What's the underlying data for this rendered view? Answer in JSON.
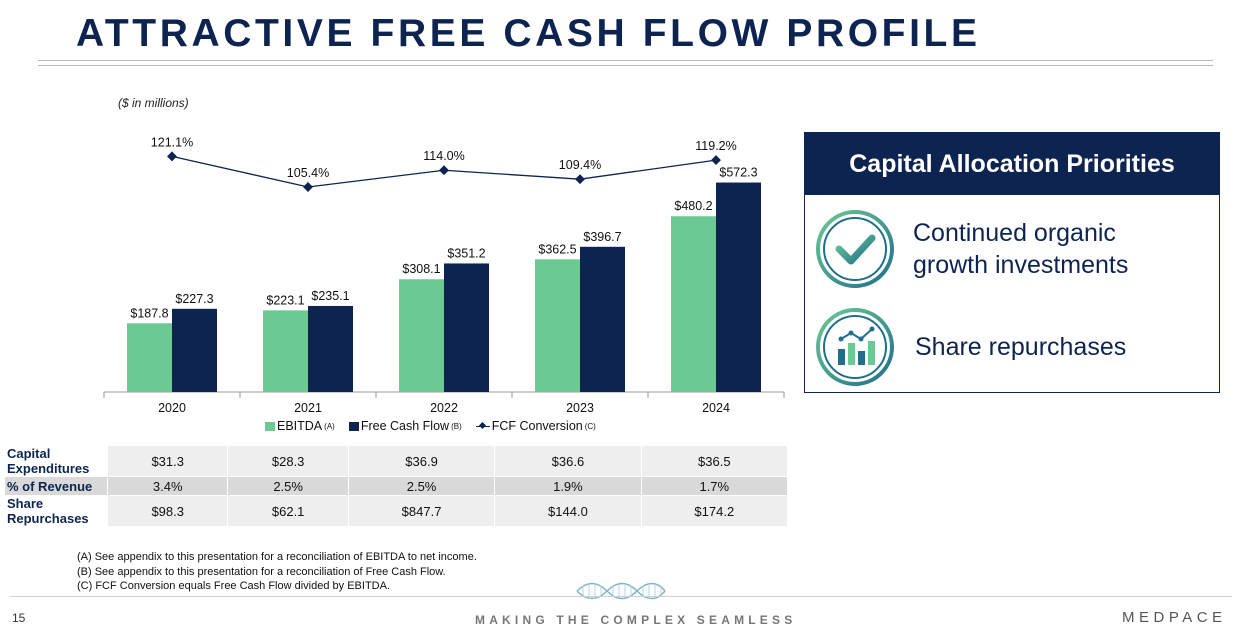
{
  "title": "ATTRACTIVE FREE CASH FLOW PROFILE",
  "units": "($ in millions)",
  "colors": {
    "ebitda": "#6dc993",
    "fcf": "#0d2450",
    "accent": "#0d2450"
  },
  "chart_data": {
    "type": "bar",
    "categories": [
      "2020",
      "2021",
      "2022",
      "2023",
      "2024"
    ],
    "series": [
      {
        "name": "EBITDA",
        "values": [
          187.8,
          223.1,
          308.1,
          362.5,
          480.2
        ],
        "labels": [
          "$187.8",
          "$223.1",
          "$308.1",
          "$362.5",
          "$480.2"
        ]
      },
      {
        "name": "Free Cash Flow",
        "values": [
          227.3,
          235.1,
          351.2,
          396.7,
          572.3
        ],
        "labels": [
          "$227.3",
          "$235.1",
          "$351.2",
          "$396.7",
          "$572.3"
        ]
      }
    ],
    "line_series": {
      "name": "FCF Conversion",
      "values": [
        121.1,
        105.4,
        114.0,
        109.4,
        119.2
      ],
      "labels": [
        "121.1%",
        "105.4%",
        "114.0%",
        "109.4%",
        "119.2%"
      ]
    },
    "legend": [
      {
        "label": "EBITDA",
        "sup": "(A)"
      },
      {
        "label": "Free Cash Flow",
        "sup": "(B)"
      },
      {
        "label": "FCF Conversion",
        "sup": "(C)"
      }
    ],
    "ylim": [
      0,
      600
    ],
    "grid": false,
    "legend_position": "bottom"
  },
  "table": {
    "rows": [
      {
        "label": "Capital Expenditures",
        "values": [
          "$31.3",
          "$28.3",
          "$36.9",
          "$36.6",
          "$36.5"
        ]
      },
      {
        "label": "% of Revenue",
        "values": [
          "3.4%",
          "2.5%",
          "2.5%",
          "1.9%",
          "1.7%"
        ]
      },
      {
        "label": "Share Repurchases",
        "values": [
          "$98.3",
          "$62.1",
          "$847.7",
          "$144.0",
          "$174.2"
        ]
      }
    ]
  },
  "footnotes": [
    "(A) See appendix to this presentation for a reconciliation of EBITDA to net income.",
    "(B) See appendix to this presentation for a reconciliation of Free Cash Flow.",
    "(C) FCF Conversion equals Free Cash Flow divided by EBITDA."
  ],
  "capital_allocation": {
    "header": "Capital Allocation Priorities",
    "items": [
      {
        "text_line1": "Continued organic",
        "text_line2": "growth investments",
        "icon": "checkmark-icon"
      },
      {
        "text_line1": "Share repurchases",
        "icon": "bar-chart-icon"
      }
    ]
  },
  "footer": {
    "page_number": "15",
    "tagline": "MAKING THE COMPLEX SEAMLESS",
    "logo": "MEDPACE"
  }
}
